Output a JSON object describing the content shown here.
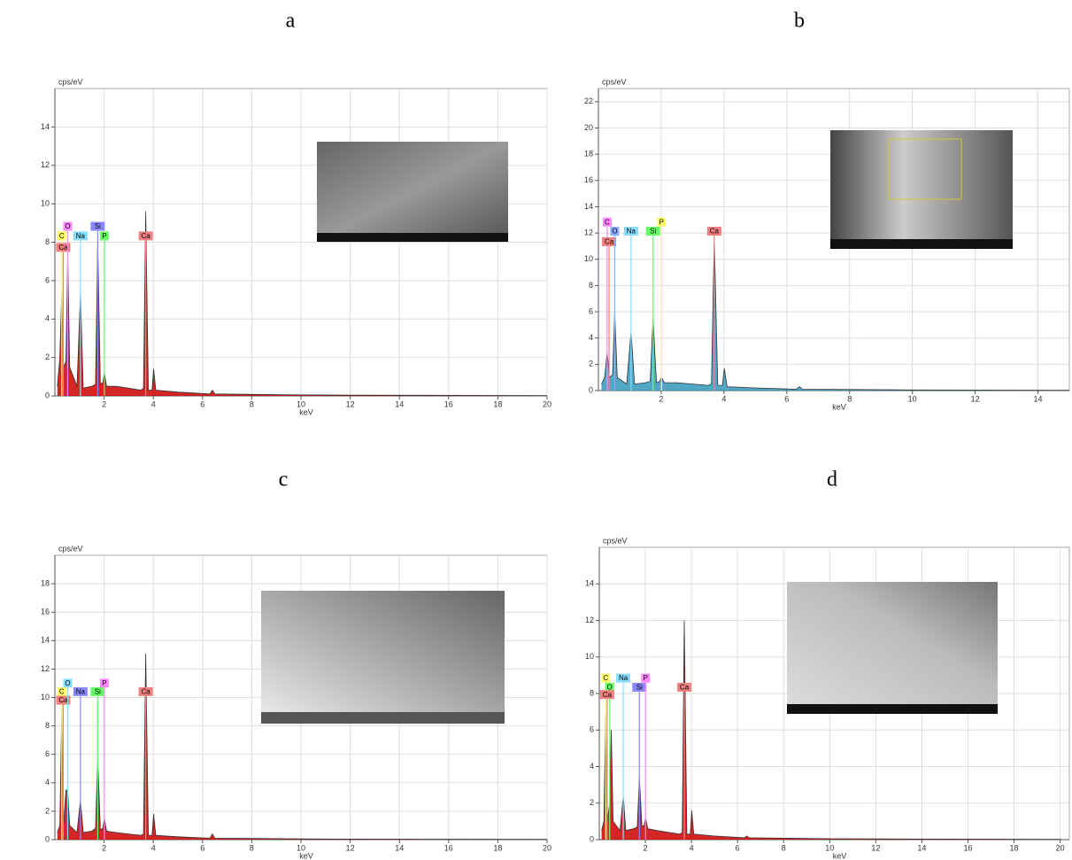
{
  "chart_data": [
    {
      "type": "area",
      "panel_label": "a",
      "ylabel": "cps/eV",
      "xlabel": "keV",
      "color": "#cc0000",
      "xlim": [
        0,
        20
      ],
      "ylim": [
        0,
        16
      ],
      "xticks": [
        2,
        4,
        6,
        8,
        10,
        12,
        14,
        16,
        18,
        20
      ],
      "yticks": [
        0,
        2,
        4,
        6,
        8,
        10,
        12,
        14
      ],
      "grid": true,
      "x": [
        0.1,
        0.2,
        0.28,
        0.35,
        0.45,
        0.52,
        0.6,
        0.9,
        1.04,
        1.15,
        1.5,
        1.65,
        1.74,
        1.85,
        1.95,
        2.01,
        2.1,
        2.5,
        3.0,
        3.5,
        3.6,
        3.69,
        3.8,
        3.95,
        4.01,
        4.1,
        5,
        6.3,
        6.4,
        6.5,
        8,
        10,
        12,
        15,
        20
      ],
      "values": [
        0.5,
        2,
        5.5,
        1.5,
        1.8,
        7.5,
        1.5,
        0.5,
        5.4,
        0.4,
        0.5,
        0.6,
        8,
        0.6,
        0.7,
        1.2,
        0.5,
        0.5,
        0.4,
        0.3,
        0.4,
        9.6,
        0.3,
        0.3,
        1.4,
        0.3,
        0.2,
        0.1,
        0.3,
        0.1,
        0.08,
        0.05,
        0.04,
        0.03,
        0.02
      ],
      "annotations": [
        {
          "label": "C",
          "x": 0.28,
          "y": 8.1,
          "color": "#ffff66"
        },
        {
          "label": "Ca",
          "x": 0.34,
          "y": 7.5,
          "color": "#f08080"
        },
        {
          "label": "O",
          "x": 0.52,
          "y": 8.6,
          "color": "#ff88ff"
        },
        {
          "label": "Na",
          "x": 1.04,
          "y": 8.1,
          "color": "#88ddff"
        },
        {
          "label": "Si",
          "x": 1.74,
          "y": 8.6,
          "color": "#8888ff"
        },
        {
          "label": "P",
          "x": 2.01,
          "y": 8.1,
          "color": "#66ff66"
        },
        {
          "label": "Ca",
          "x": 3.69,
          "y": 8.1,
          "color": "#f08080"
        }
      ]
    },
    {
      "type": "area",
      "panel_label": "b",
      "ylabel": "cps/eV",
      "xlabel": "keV",
      "color": "#3399bb",
      "xlim": [
        0,
        15
      ],
      "ylim": [
        0,
        23
      ],
      "xticks": [
        2,
        4,
        6,
        8,
        10,
        12,
        14
      ],
      "yticks": [
        0,
        2,
        4,
        6,
        8,
        10,
        12,
        14,
        16,
        18,
        20,
        22
      ],
      "grid": true,
      "x": [
        0.1,
        0.2,
        0.28,
        0.35,
        0.45,
        0.52,
        0.6,
        0.9,
        1.04,
        1.15,
        1.5,
        1.65,
        1.74,
        1.85,
        1.95,
        2.01,
        2.1,
        2.5,
        3.0,
        3.5,
        3.6,
        3.69,
        3.8,
        3.95,
        4.01,
        4.1,
        5,
        6.3,
        6.4,
        6.5,
        8,
        10,
        12,
        15
      ],
      "values": [
        0.5,
        1,
        3,
        1,
        1.2,
        6,
        1,
        0.5,
        4.5,
        0.5,
        0.6,
        0.7,
        5.5,
        0.6,
        0.7,
        1,
        0.6,
        0.6,
        0.5,
        0.4,
        0.5,
        11.7,
        0.4,
        0.4,
        1.7,
        0.3,
        0.2,
        0.1,
        0.3,
        0.1,
        0.08,
        0.05,
        0.04,
        0.03
      ],
      "annotations": [
        {
          "label": "C",
          "x": 0.28,
          "y": 12.5,
          "color": "#ff88ff"
        },
        {
          "label": "Ca",
          "x": 0.34,
          "y": 11,
          "color": "#f08080"
        },
        {
          "label": "O",
          "x": 0.52,
          "y": 11.8,
          "color": "#88aaff"
        },
        {
          "label": "Na",
          "x": 1.04,
          "y": 11.8,
          "color": "#88ddff"
        },
        {
          "label": "Si",
          "x": 1.74,
          "y": 11.8,
          "color": "#66ff66"
        },
        {
          "label": "P",
          "x": 2.01,
          "y": 12.5,
          "color": "#ffff66"
        },
        {
          "label": "Ca",
          "x": 3.69,
          "y": 11.8,
          "color": "#f08080"
        }
      ]
    },
    {
      "type": "area",
      "panel_label": "c",
      "ylabel": "cps/eV",
      "xlabel": "keV",
      "color": "#cc0000",
      "xlim": [
        0,
        20
      ],
      "ylim": [
        0,
        20
      ],
      "xticks": [
        2,
        4,
        6,
        8,
        10,
        12,
        14,
        16,
        18,
        20
      ],
      "yticks": [
        0,
        2,
        4,
        6,
        8,
        10,
        12,
        14,
        16,
        18
      ],
      "grid": true,
      "x": [
        0.1,
        0.2,
        0.28,
        0.35,
        0.45,
        0.52,
        0.6,
        0.9,
        1.04,
        1.15,
        1.5,
        1.65,
        1.74,
        1.85,
        1.95,
        2.01,
        2.1,
        2.5,
        3.0,
        3.5,
        3.6,
        3.69,
        3.8,
        3.95,
        4.01,
        4.1,
        5,
        6.3,
        6.4,
        6.5,
        8,
        10,
        12,
        15,
        20
      ],
      "values": [
        0.5,
        1,
        9.3,
        1,
        3.5,
        3.4,
        1,
        0.5,
        2.8,
        0.5,
        0.6,
        0.8,
        5.7,
        0.7,
        0.8,
        1.5,
        0.6,
        0.5,
        0.4,
        0.3,
        0.4,
        13.1,
        0.3,
        0.3,
        1.8,
        0.3,
        0.2,
        0.1,
        0.4,
        0.1,
        0.08,
        0.05,
        0.04,
        0.03,
        0.02
      ],
      "annotations": [
        {
          "label": "C",
          "x": 0.28,
          "y": 10.1,
          "color": "#ffff66"
        },
        {
          "label": "Ca",
          "x": 0.34,
          "y": 9.5,
          "color": "#f08080"
        },
        {
          "label": "O",
          "x": 0.52,
          "y": 10.7,
          "color": "#88ddff"
        },
        {
          "label": "Na",
          "x": 1.04,
          "y": 10.1,
          "color": "#8888ff"
        },
        {
          "label": "Si",
          "x": 1.74,
          "y": 10.1,
          "color": "#66ff66"
        },
        {
          "label": "P",
          "x": 2.01,
          "y": 10.7,
          "color": "#ff88ff"
        },
        {
          "label": "Ca",
          "x": 3.69,
          "y": 10.1,
          "color": "#f08080"
        }
      ]
    },
    {
      "type": "area",
      "panel_label": "d",
      "ylabel": "cps/eV",
      "xlabel": "keV",
      "color": "#cc0000",
      "xlim": [
        0,
        20.4
      ],
      "ylim": [
        0,
        16
      ],
      "xticks": [
        2,
        4,
        6,
        8,
        10,
        12,
        14,
        16,
        18,
        20
      ],
      "yticks": [
        0,
        2,
        4,
        6,
        8,
        10,
        12,
        14
      ],
      "grid": true,
      "x": [
        0.1,
        0.2,
        0.28,
        0.35,
        0.45,
        0.52,
        0.6,
        0.9,
        1.04,
        1.15,
        1.5,
        1.65,
        1.74,
        1.85,
        1.95,
        2.01,
        2.1,
        2.5,
        3.0,
        3.5,
        3.6,
        3.69,
        3.8,
        3.95,
        4.01,
        4.1,
        5,
        6.3,
        6.4,
        6.5,
        8,
        10,
        12,
        15,
        20
      ],
      "values": [
        0.5,
        1,
        7,
        1,
        2,
        6,
        1,
        0.5,
        2.4,
        0.5,
        0.6,
        0.7,
        3.4,
        0.7,
        0.8,
        1.2,
        0.6,
        0.5,
        0.4,
        0.3,
        0.4,
        12,
        0.3,
        0.3,
        1.6,
        0.3,
        0.2,
        0.1,
        0.2,
        0.1,
        0.08,
        0.05,
        0.04,
        0.03,
        0.02
      ],
      "annotations": [
        {
          "label": "C",
          "x": 0.28,
          "y": 8.6,
          "color": "#ffff66"
        },
        {
          "label": "O",
          "x": 0.45,
          "y": 8.1,
          "color": "#66ff66"
        },
        {
          "label": "Ca",
          "x": 0.34,
          "y": 7.7,
          "color": "#f08080"
        },
        {
          "label": "Na",
          "x": 1.04,
          "y": 8.6,
          "color": "#88ddff"
        },
        {
          "label": "Si",
          "x": 1.74,
          "y": 8.1,
          "color": "#8888ff"
        },
        {
          "label": "P",
          "x": 2.01,
          "y": 8.6,
          "color": "#ff88ff"
        },
        {
          "label": "Ca",
          "x": 3.69,
          "y": 8.1,
          "color": "#f08080"
        }
      ]
    }
  ]
}
